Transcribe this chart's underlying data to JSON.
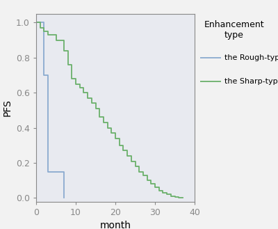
{
  "title": "",
  "xlabel": "month",
  "ylabel": "PFS",
  "xlim": [
    0,
    40
  ],
  "ylim": [
    -0.02,
    1.05
  ],
  "xticks": [
    0,
    10,
    20,
    30,
    40
  ],
  "yticks": [
    0.0,
    0.2,
    0.4,
    0.6,
    0.8,
    1.0
  ],
  "rough_times": [
    0,
    2,
    3,
    6,
    7
  ],
  "rough_surv": [
    1.0,
    0.7,
    0.15,
    0.15,
    0.0
  ],
  "sharp_times": [
    0,
    1,
    2,
    3,
    5,
    7,
    8,
    9,
    10,
    11,
    12,
    13,
    14,
    15,
    16,
    17,
    18,
    19,
    20,
    21,
    22,
    23,
    24,
    25,
    26,
    27,
    28,
    29,
    30,
    31,
    32,
    33,
    34,
    35,
    36,
    37
  ],
  "sharp_surv": [
    1.0,
    0.97,
    0.95,
    0.93,
    0.9,
    0.84,
    0.76,
    0.68,
    0.65,
    0.63,
    0.6,
    0.57,
    0.54,
    0.51,
    0.46,
    0.43,
    0.4,
    0.37,
    0.34,
    0.3,
    0.27,
    0.24,
    0.21,
    0.18,
    0.15,
    0.13,
    0.1,
    0.08,
    0.06,
    0.04,
    0.03,
    0.02,
    0.01,
    0.005,
    0.0,
    0.0
  ],
  "rough_color": "#8aaacf",
  "sharp_color": "#6ab06a",
  "legend_title": "Enhancement\ntype",
  "legend_rough": "the Rough-type",
  "legend_sharp": "the Sharp-type",
  "plot_bg_color": "#e8eaf0",
  "fig_bg_color": "#f2f2f2",
  "spine_color": "#888888",
  "tick_label_size": 9,
  "axis_label_size": 10,
  "legend_title_size": 9,
  "legend_label_size": 8,
  "linewidth": 1.3
}
